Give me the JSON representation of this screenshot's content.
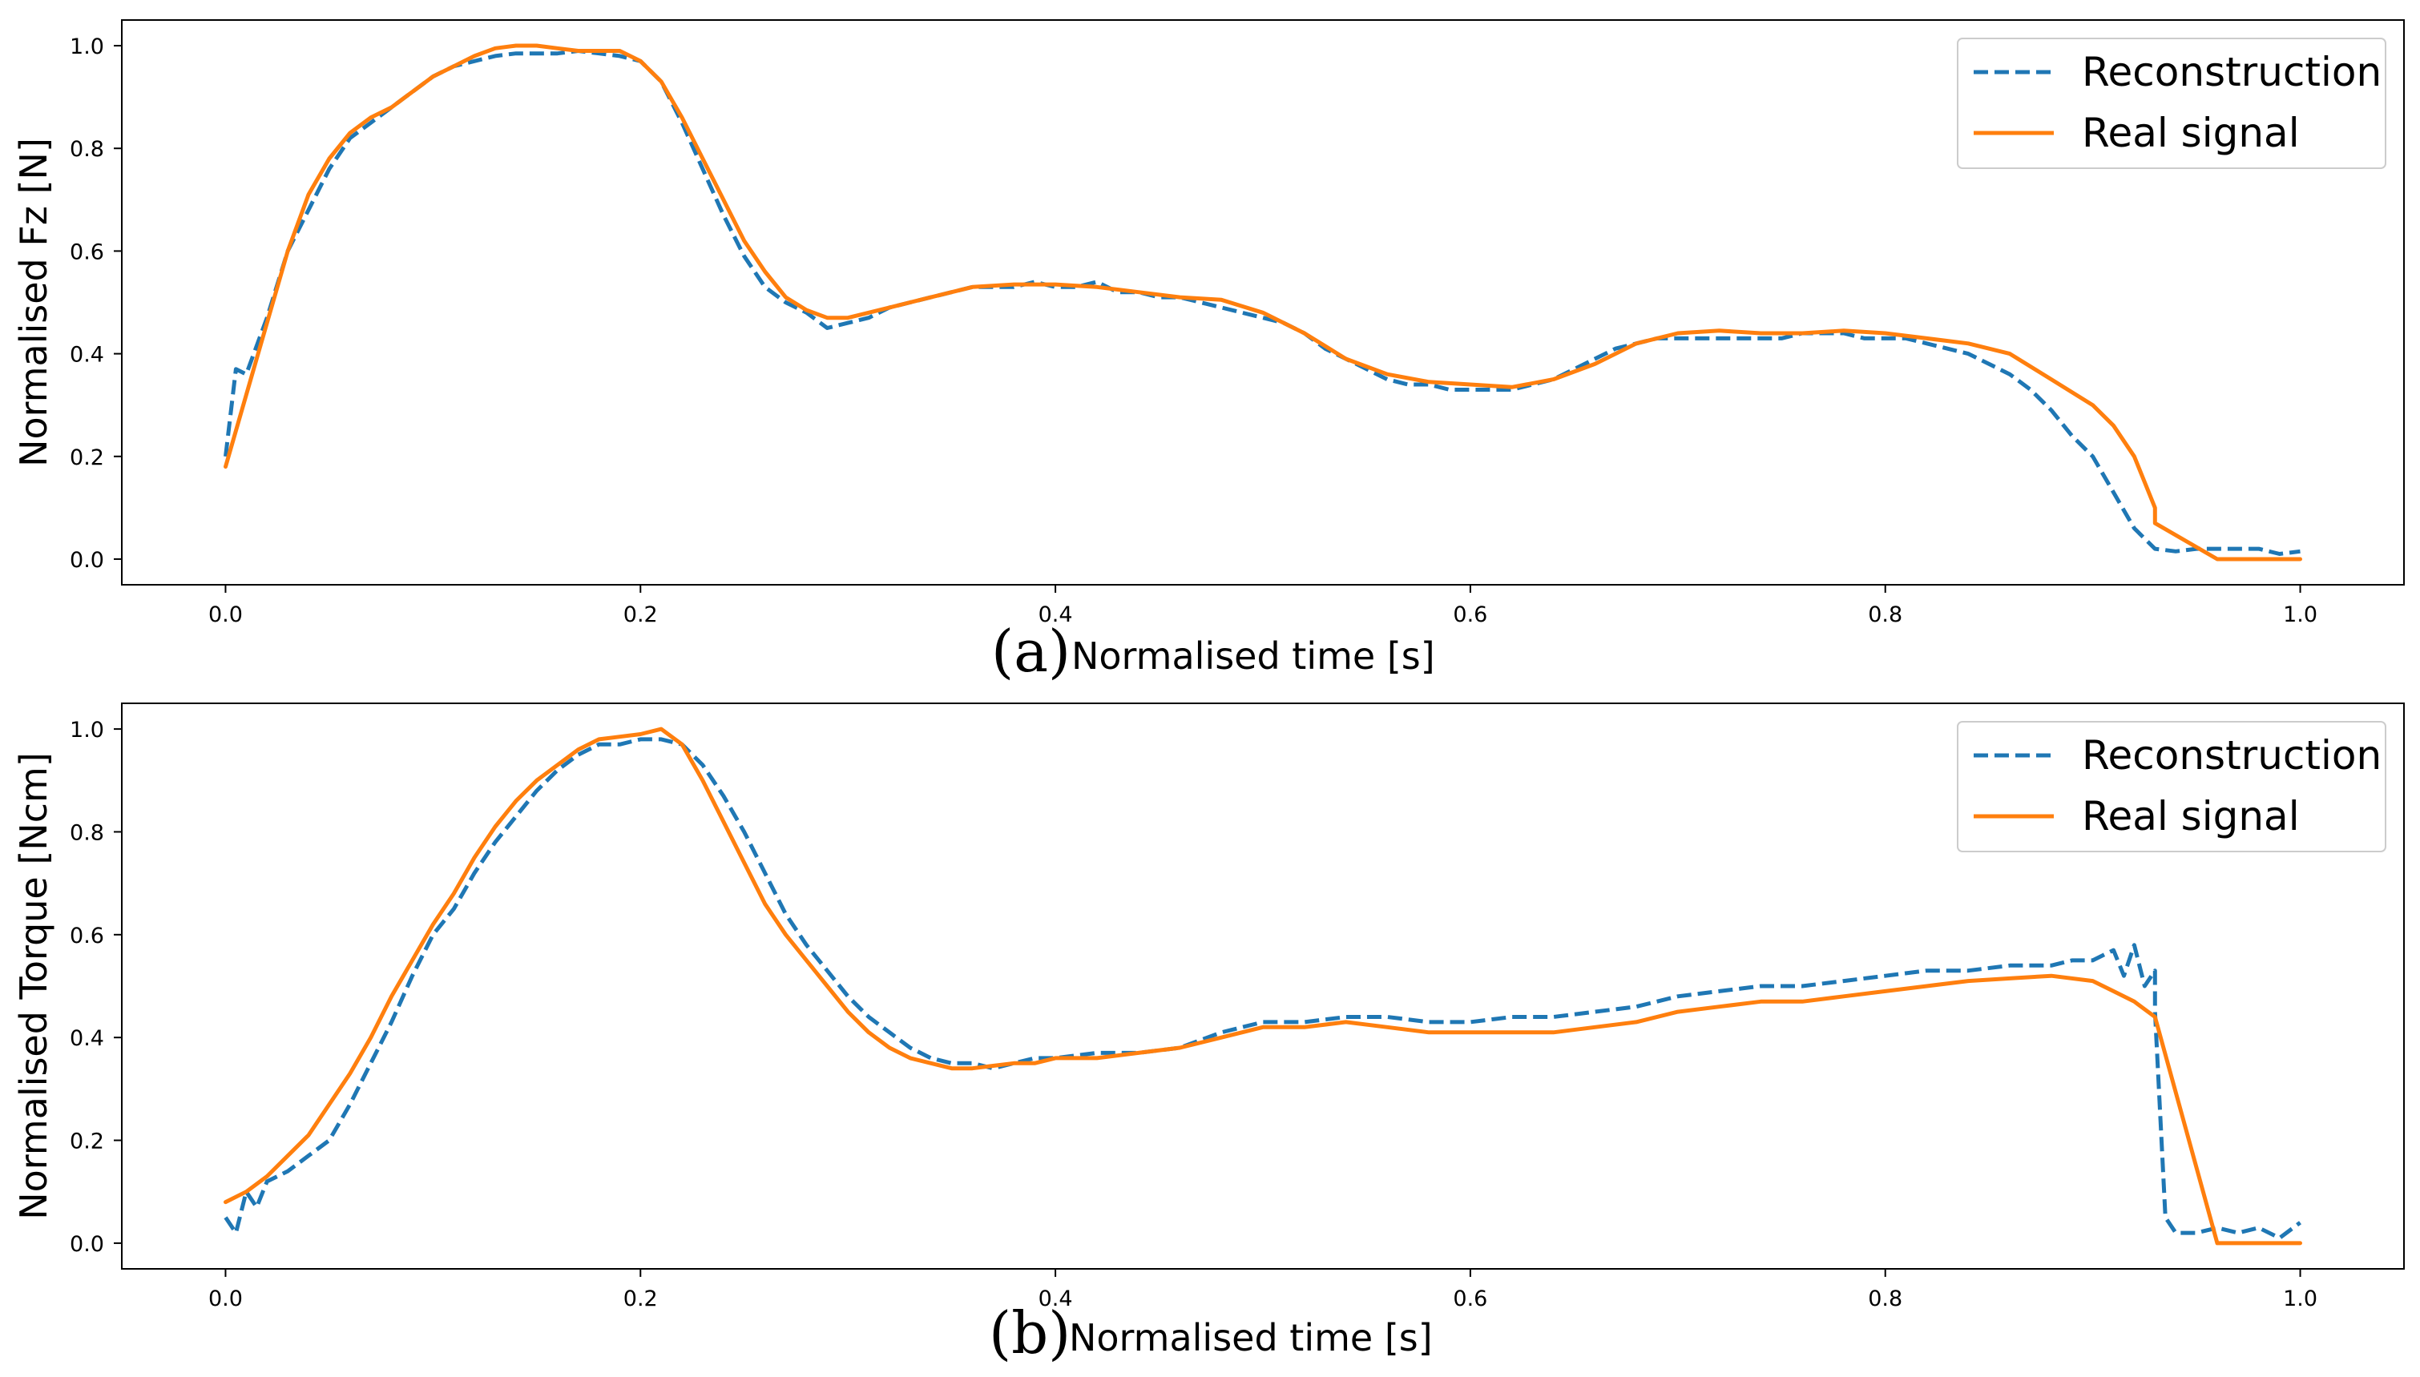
{
  "chart_data": [
    {
      "type": "line",
      "panel_label": "(a)",
      "xlabel": "Normalised time [s]",
      "ylabel": "Normalised Fz [N]",
      "xlim": [
        -0.05,
        1.05
      ],
      "ylim": [
        -0.05,
        1.05
      ],
      "xticks": [
        0.0,
        0.2,
        0.4,
        0.6,
        0.8,
        1.0
      ],
      "xtick_labels": [
        "0.0",
        "0.2",
        "0.4",
        "0.6",
        "0.8",
        "1.0"
      ],
      "yticks": [
        0.0,
        0.2,
        0.4,
        0.6,
        0.8,
        1.0
      ],
      "ytick_labels": [
        "0.0",
        "0.2",
        "0.4",
        "0.6",
        "0.8",
        "1.0"
      ],
      "legend": {
        "location": "top-right"
      },
      "series": [
        {
          "name": "Reconstruction",
          "style": "dashed",
          "color": "#1f77b4",
          "x": [
            0.0,
            0.005,
            0.01,
            0.02,
            0.03,
            0.04,
            0.05,
            0.06,
            0.07,
            0.08,
            0.09,
            0.1,
            0.11,
            0.12,
            0.13,
            0.14,
            0.15,
            0.16,
            0.17,
            0.18,
            0.19,
            0.2,
            0.21,
            0.22,
            0.23,
            0.24,
            0.25,
            0.26,
            0.27,
            0.28,
            0.29,
            0.3,
            0.31,
            0.32,
            0.33,
            0.34,
            0.35,
            0.36,
            0.37,
            0.38,
            0.39,
            0.4,
            0.41,
            0.42,
            0.43,
            0.44,
            0.45,
            0.46,
            0.47,
            0.48,
            0.49,
            0.5,
            0.51,
            0.52,
            0.53,
            0.54,
            0.55,
            0.56,
            0.57,
            0.58,
            0.59,
            0.6,
            0.61,
            0.62,
            0.63,
            0.64,
            0.65,
            0.66,
            0.67,
            0.68,
            0.69,
            0.7,
            0.71,
            0.72,
            0.73,
            0.74,
            0.75,
            0.76,
            0.77,
            0.78,
            0.79,
            0.8,
            0.81,
            0.82,
            0.83,
            0.84,
            0.85,
            0.86,
            0.87,
            0.88,
            0.89,
            0.9,
            0.91,
            0.92,
            0.93,
            0.94,
            0.95,
            0.96,
            0.97,
            0.98,
            0.99,
            1.0
          ],
          "y": [
            0.2,
            0.37,
            0.36,
            0.47,
            0.6,
            0.68,
            0.76,
            0.82,
            0.85,
            0.88,
            0.91,
            0.94,
            0.96,
            0.97,
            0.98,
            0.985,
            0.985,
            0.985,
            0.99,
            0.985,
            0.98,
            0.97,
            0.93,
            0.85,
            0.76,
            0.67,
            0.59,
            0.53,
            0.5,
            0.48,
            0.45,
            0.46,
            0.47,
            0.49,
            0.5,
            0.51,
            0.52,
            0.53,
            0.53,
            0.53,
            0.54,
            0.53,
            0.53,
            0.54,
            0.52,
            0.52,
            0.51,
            0.51,
            0.5,
            0.49,
            0.48,
            0.47,
            0.46,
            0.44,
            0.41,
            0.39,
            0.37,
            0.35,
            0.34,
            0.34,
            0.33,
            0.33,
            0.33,
            0.33,
            0.34,
            0.35,
            0.37,
            0.39,
            0.41,
            0.42,
            0.43,
            0.43,
            0.43,
            0.43,
            0.43,
            0.43,
            0.43,
            0.44,
            0.44,
            0.44,
            0.43,
            0.43,
            0.43,
            0.42,
            0.41,
            0.4,
            0.38,
            0.36,
            0.33,
            0.29,
            0.24,
            0.2,
            0.13,
            0.06,
            0.02,
            0.015,
            0.02,
            0.02,
            0.02,
            0.02,
            0.01,
            0.015
          ]
        },
        {
          "name": "Real signal",
          "style": "solid",
          "color": "#ff7f0e",
          "x": [
            0.0,
            0.01,
            0.02,
            0.03,
            0.04,
            0.05,
            0.06,
            0.07,
            0.08,
            0.09,
            0.1,
            0.11,
            0.12,
            0.13,
            0.14,
            0.15,
            0.16,
            0.17,
            0.18,
            0.19,
            0.2,
            0.21,
            0.22,
            0.23,
            0.24,
            0.25,
            0.26,
            0.27,
            0.28,
            0.29,
            0.3,
            0.32,
            0.34,
            0.36,
            0.38,
            0.4,
            0.42,
            0.44,
            0.46,
            0.48,
            0.5,
            0.52,
            0.54,
            0.56,
            0.58,
            0.6,
            0.62,
            0.64,
            0.66,
            0.68,
            0.7,
            0.72,
            0.74,
            0.76,
            0.78,
            0.8,
            0.82,
            0.84,
            0.86,
            0.88,
            0.9,
            0.91,
            0.92,
            0.93,
            0.93,
            0.96,
            1.0
          ],
          "y": [
            0.18,
            0.32,
            0.46,
            0.6,
            0.71,
            0.78,
            0.83,
            0.86,
            0.88,
            0.91,
            0.94,
            0.96,
            0.98,
            0.995,
            1.0,
            1.0,
            0.995,
            0.99,
            0.99,
            0.99,
            0.97,
            0.93,
            0.86,
            0.78,
            0.7,
            0.62,
            0.56,
            0.51,
            0.485,
            0.47,
            0.47,
            0.49,
            0.51,
            0.53,
            0.535,
            0.535,
            0.53,
            0.52,
            0.51,
            0.505,
            0.48,
            0.44,
            0.39,
            0.36,
            0.345,
            0.34,
            0.335,
            0.35,
            0.38,
            0.42,
            0.44,
            0.445,
            0.44,
            0.44,
            0.445,
            0.44,
            0.43,
            0.42,
            0.4,
            0.35,
            0.3,
            0.26,
            0.2,
            0.1,
            0.07,
            0.0,
            0.0
          ]
        }
      ]
    },
    {
      "type": "line",
      "panel_label": "(b)",
      "xlabel": "Normalised time [s]",
      "ylabel": "Normalised Torque [Ncm]",
      "xlim": [
        -0.05,
        1.05
      ],
      "ylim": [
        -0.05,
        1.05
      ],
      "xticks": [
        0.0,
        0.2,
        0.4,
        0.6,
        0.8,
        1.0
      ],
      "xtick_labels": [
        "0.0",
        "0.2",
        "0.4",
        "0.6",
        "0.8",
        "1.0"
      ],
      "yticks": [
        0.0,
        0.2,
        0.4,
        0.6,
        0.8,
        1.0
      ],
      "ytick_labels": [
        "0.0",
        "0.2",
        "0.4",
        "0.6",
        "0.8",
        "1.0"
      ],
      "legend": {
        "location": "top-right"
      },
      "series": [
        {
          "name": "Reconstruction",
          "style": "dashed",
          "color": "#1f77b4",
          "x": [
            0.0,
            0.005,
            0.01,
            0.015,
            0.02,
            0.03,
            0.04,
            0.05,
            0.06,
            0.07,
            0.08,
            0.09,
            0.1,
            0.11,
            0.12,
            0.13,
            0.14,
            0.15,
            0.16,
            0.17,
            0.18,
            0.19,
            0.2,
            0.21,
            0.22,
            0.23,
            0.24,
            0.25,
            0.26,
            0.27,
            0.28,
            0.29,
            0.3,
            0.31,
            0.32,
            0.33,
            0.34,
            0.35,
            0.36,
            0.37,
            0.38,
            0.39,
            0.4,
            0.42,
            0.44,
            0.46,
            0.48,
            0.5,
            0.52,
            0.54,
            0.56,
            0.58,
            0.6,
            0.62,
            0.64,
            0.66,
            0.68,
            0.7,
            0.72,
            0.74,
            0.76,
            0.78,
            0.8,
            0.82,
            0.84,
            0.86,
            0.88,
            0.89,
            0.9,
            0.91,
            0.915,
            0.92,
            0.925,
            0.93,
            0.93,
            0.935,
            0.94,
            0.95,
            0.96,
            0.97,
            0.98,
            0.99,
            1.0
          ],
          "y": [
            0.05,
            0.02,
            0.1,
            0.07,
            0.12,
            0.14,
            0.17,
            0.2,
            0.27,
            0.35,
            0.43,
            0.52,
            0.6,
            0.65,
            0.72,
            0.78,
            0.83,
            0.88,
            0.92,
            0.95,
            0.97,
            0.97,
            0.98,
            0.98,
            0.97,
            0.93,
            0.87,
            0.8,
            0.72,
            0.64,
            0.58,
            0.53,
            0.48,
            0.44,
            0.41,
            0.38,
            0.36,
            0.35,
            0.35,
            0.34,
            0.35,
            0.36,
            0.36,
            0.37,
            0.37,
            0.38,
            0.41,
            0.43,
            0.43,
            0.44,
            0.44,
            0.43,
            0.43,
            0.44,
            0.44,
            0.45,
            0.46,
            0.48,
            0.49,
            0.5,
            0.5,
            0.51,
            0.52,
            0.53,
            0.53,
            0.54,
            0.54,
            0.55,
            0.55,
            0.57,
            0.52,
            0.58,
            0.5,
            0.53,
            0.45,
            0.05,
            0.02,
            0.02,
            0.03,
            0.02,
            0.03,
            0.01,
            0.04
          ]
        },
        {
          "name": "Real signal",
          "style": "solid",
          "color": "#ff7f0e",
          "x": [
            0.0,
            0.01,
            0.02,
            0.03,
            0.04,
            0.05,
            0.06,
            0.07,
            0.08,
            0.09,
            0.1,
            0.11,
            0.12,
            0.13,
            0.14,
            0.15,
            0.16,
            0.17,
            0.18,
            0.19,
            0.2,
            0.21,
            0.22,
            0.23,
            0.24,
            0.25,
            0.26,
            0.27,
            0.28,
            0.29,
            0.3,
            0.31,
            0.32,
            0.33,
            0.34,
            0.35,
            0.36,
            0.37,
            0.38,
            0.39,
            0.4,
            0.42,
            0.44,
            0.46,
            0.48,
            0.5,
            0.52,
            0.54,
            0.56,
            0.58,
            0.6,
            0.62,
            0.64,
            0.66,
            0.68,
            0.7,
            0.72,
            0.74,
            0.76,
            0.78,
            0.8,
            0.82,
            0.84,
            0.86,
            0.88,
            0.9,
            0.91,
            0.92,
            0.93,
            0.93,
            0.96,
            1.0
          ],
          "y": [
            0.08,
            0.1,
            0.13,
            0.17,
            0.21,
            0.27,
            0.33,
            0.4,
            0.48,
            0.55,
            0.62,
            0.68,
            0.75,
            0.81,
            0.86,
            0.9,
            0.93,
            0.96,
            0.98,
            0.985,
            0.99,
            1.0,
            0.97,
            0.9,
            0.82,
            0.74,
            0.66,
            0.6,
            0.55,
            0.5,
            0.45,
            0.41,
            0.38,
            0.36,
            0.35,
            0.34,
            0.34,
            0.345,
            0.35,
            0.35,
            0.36,
            0.36,
            0.37,
            0.38,
            0.4,
            0.42,
            0.42,
            0.43,
            0.42,
            0.41,
            0.41,
            0.41,
            0.41,
            0.42,
            0.43,
            0.45,
            0.46,
            0.47,
            0.47,
            0.48,
            0.49,
            0.5,
            0.51,
            0.515,
            0.52,
            0.51,
            0.49,
            0.47,
            0.44,
            0.44,
            0.0,
            0.0
          ]
        }
      ]
    }
  ]
}
